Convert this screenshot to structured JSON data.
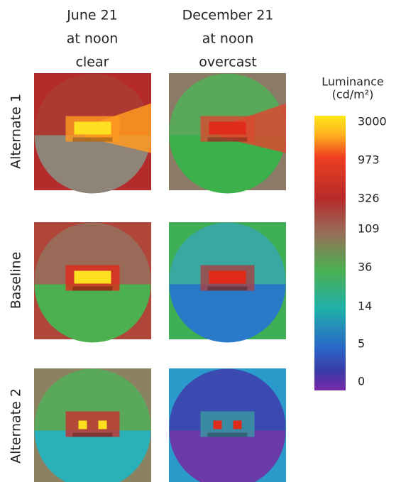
{
  "columns": [
    {
      "lines": [
        "June 21",
        "at noon",
        "clear"
      ]
    },
    {
      "lines": [
        "December 21",
        "at noon",
        "overcast"
      ]
    }
  ],
  "rows": [
    "Alternate 1",
    "Baseline",
    "Alternate 2"
  ],
  "legend": {
    "title": [
      "Luminance",
      "(cd/m²)"
    ],
    "labels": [
      "3000",
      "973",
      "326",
      "109",
      "36",
      "14",
      "5",
      "0"
    ]
  }
}
